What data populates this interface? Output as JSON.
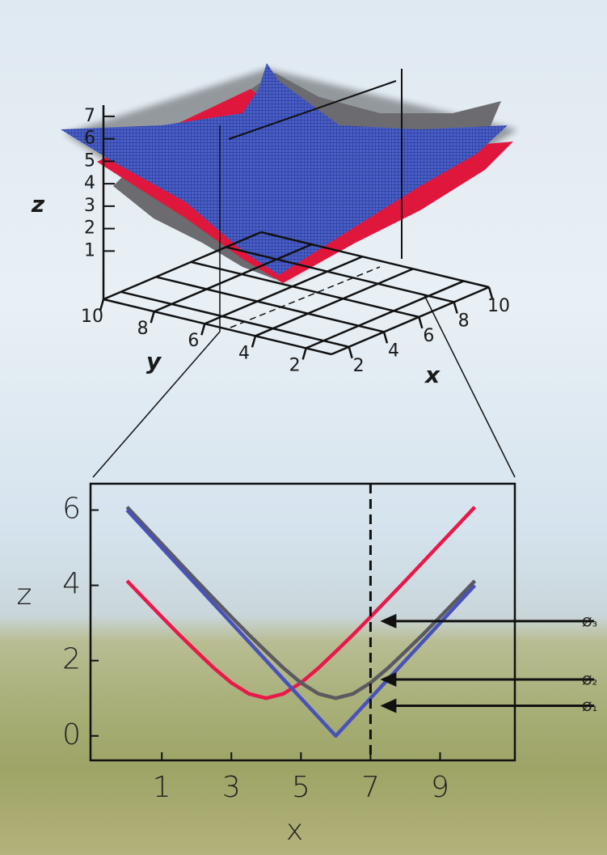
{
  "chart_data": [
    {
      "type": "surface3d",
      "xlabel": "x",
      "ylabel": "y",
      "zlabel": "z",
      "xlim": [
        1,
        10
      ],
      "ylim": [
        1,
        10
      ],
      "zlim": [
        -1.15,
        7.5
      ],
      "xticks": [
        2,
        4,
        6,
        8,
        10
      ],
      "yticks": [
        2,
        4,
        6,
        8,
        10
      ],
      "zticks": [
        1,
        2,
        3,
        4,
        5,
        6,
        7
      ],
      "colors": [
        "#6b6b70",
        "#e0173d",
        "#4a5fc9"
      ]
    },
    {
      "type": "line",
      "xlabel": "x",
      "ylabel": "z",
      "x": [
        0,
        0.5,
        1,
        1.5,
        2,
        2.5,
        3,
        3.5,
        4,
        4.5,
        5,
        5.5,
        6,
        6.5,
        7,
        7.5,
        8,
        8.5,
        9,
        9.5,
        10
      ],
      "series": [
        {
          "color": "#e8194a",
          "values": [
            4.12,
            3.64,
            3.16,
            2.69,
            2.24,
            1.8,
            1.41,
            1.12,
            1,
            1.12,
            1.41,
            1.8,
            2.24,
            2.69,
            3.16,
            3.64,
            4.12,
            4.61,
            5.1,
            5.59,
            6.08
          ]
        },
        {
          "color": "#5a5a60",
          "values": [
            6.08,
            5.59,
            5.1,
            4.61,
            4.12,
            3.64,
            3.16,
            2.69,
            2.24,
            1.8,
            1.41,
            1.12,
            1,
            1.12,
            1.41,
            1.8,
            2.24,
            2.69,
            3.16,
            3.64,
            4.12
          ]
        },
        {
          "color": "#4752ba",
          "values": [
            6,
            5.5,
            5,
            4.5,
            4,
            3.5,
            3,
            2.5,
            2,
            1.5,
            1,
            0.5,
            0,
            0.5,
            1,
            1.5,
            2,
            2.5,
            3,
            3.5,
            4
          ]
        }
      ],
      "xlim": [
        -1.05,
        11.15
      ],
      "ylim": [
        -0.65,
        6.7
      ],
      "xticks": [
        1,
        3,
        5,
        7,
        9
      ],
      "yticks": [
        0,
        2,
        4,
        6
      ],
      "vline": 7,
      "annotations": [
        {
          "text": "Ø₃",
          "x": 7,
          "y": 3.05
        },
        {
          "text": "Ø₂",
          "x": 7,
          "y": 1.5
        },
        {
          "text": "Ø₁",
          "x": 7,
          "y": 0.8
        }
      ]
    }
  ]
}
